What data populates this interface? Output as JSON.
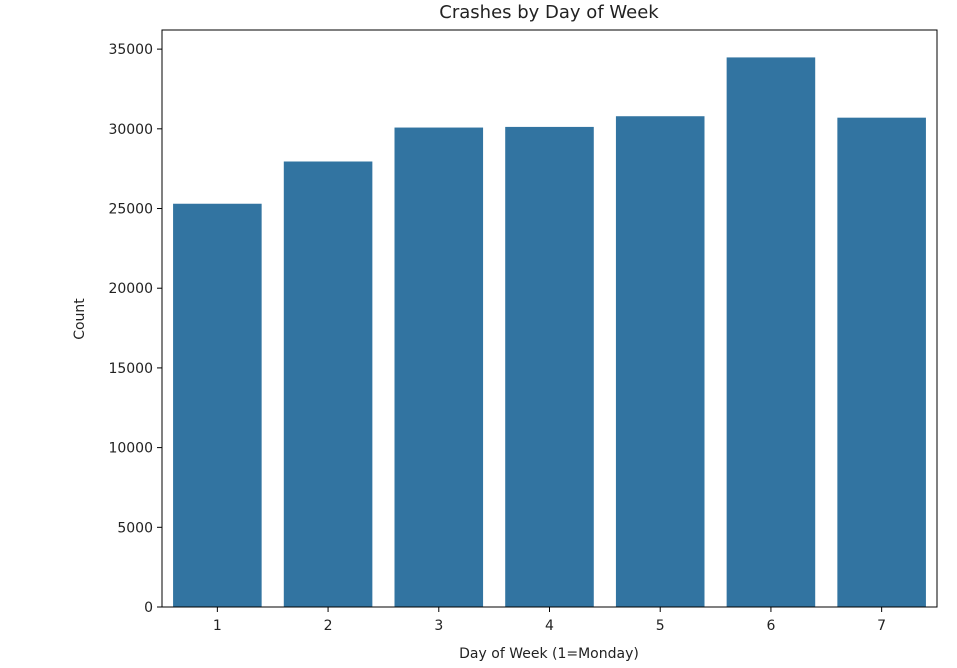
{
  "chart_data": {
    "type": "bar",
    "title": "Crashes by Day of Week",
    "xlabel": "Day of Week (1=Monday)",
    "ylabel": "Count",
    "categories": [
      "1",
      "2",
      "3",
      "4",
      "5",
      "6",
      "7"
    ],
    "values": [
      25300,
      27950,
      30080,
      30120,
      30790,
      34480,
      30700
    ],
    "ylim": [
      0,
      36200
    ],
    "yticks": [
      0,
      5000,
      10000,
      15000,
      20000,
      25000,
      30000,
      35000
    ],
    "ytick_labels": [
      "0",
      "5000",
      "10000",
      "15000",
      "20000",
      "25000",
      "30000",
      "35000"
    ],
    "bar_color": "#3274a1",
    "grid": false,
    "legend": "none"
  }
}
